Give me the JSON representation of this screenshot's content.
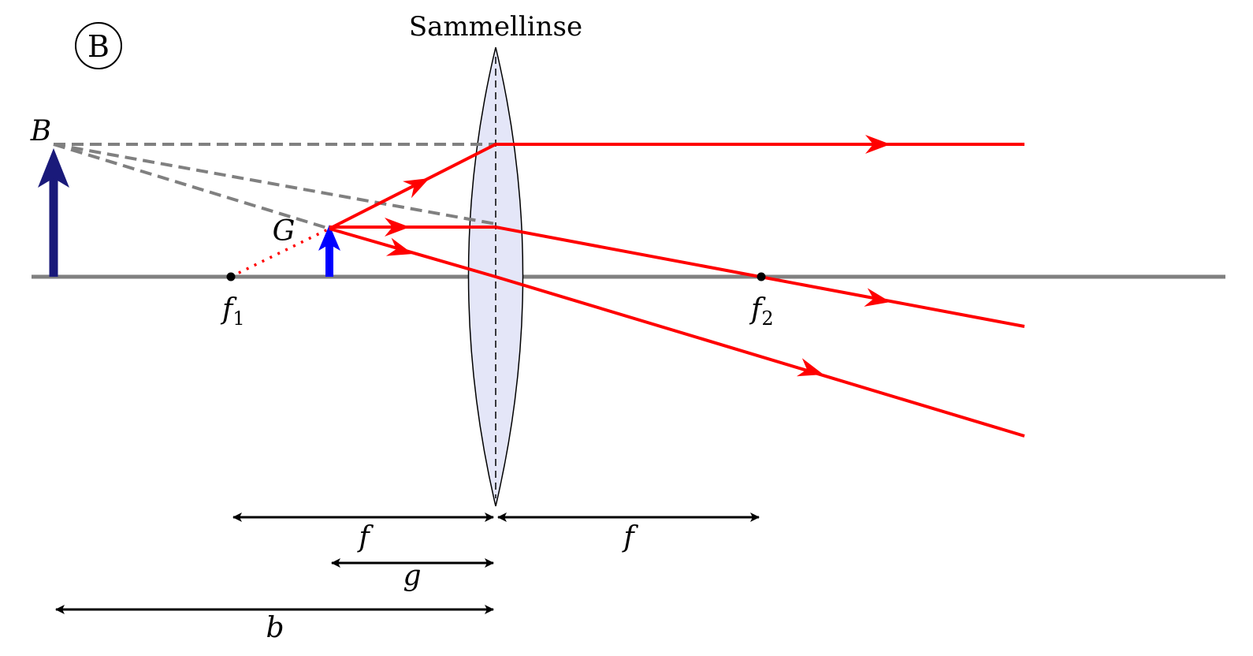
{
  "panel_mark": "B",
  "lens_label": "Sammellinse",
  "labels": {
    "image": "B",
    "object": "G",
    "focus_left_main": "f",
    "focus_left_sub": "1",
    "focus_right_main": "f",
    "focus_right_sub": "2"
  },
  "dimensions": {
    "f_left": "f",
    "f_right": "f",
    "g": "g",
    "b": "b"
  },
  "colors": {
    "axis": "#808080",
    "lens_fill": "#e4e6f8",
    "ray": "#ff0000",
    "virtual": "#808080",
    "object_arrow": "#0000ff",
    "image_arrow": "#1a1a7a"
  }
}
